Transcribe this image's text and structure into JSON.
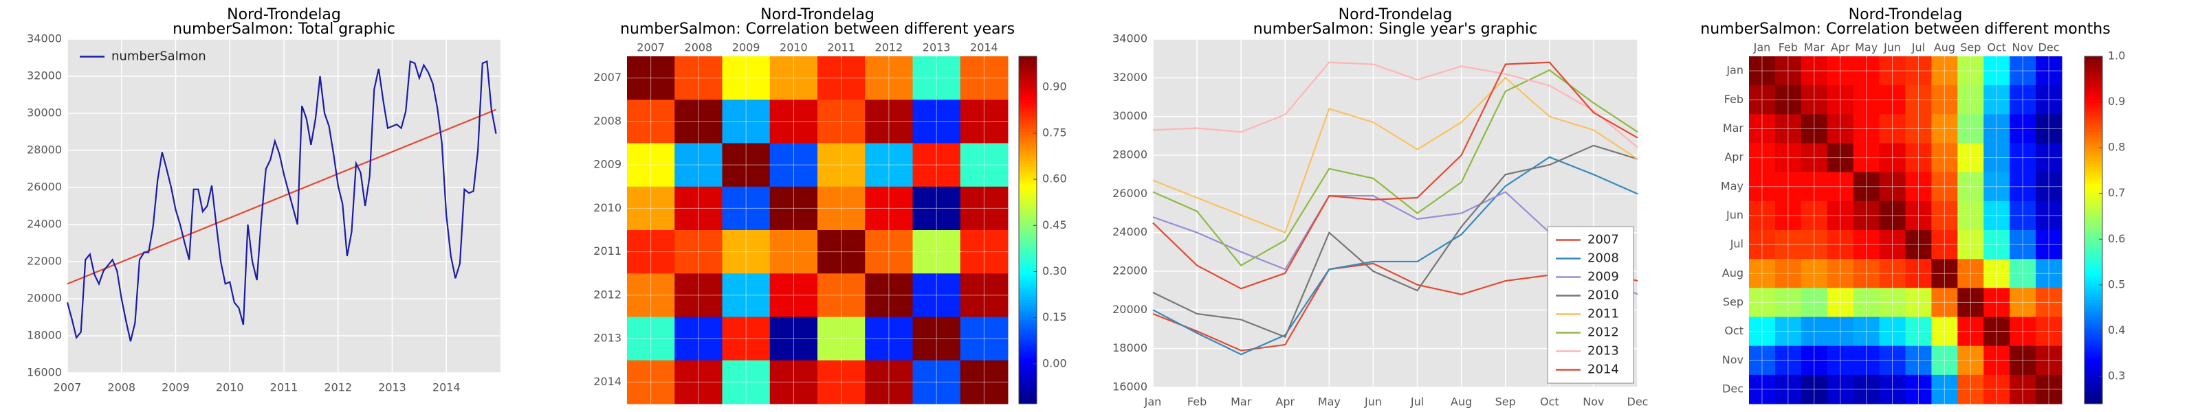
{
  "chart_data": [
    {
      "type": "line",
      "title": "Nord-Trondelag",
      "subtitle": "numberSalmon: Total graphic",
      "x": [
        2007,
        2007.083,
        2007.167,
        2007.25,
        2007.333,
        2007.417,
        2007.5,
        2007.583,
        2007.667,
        2007.75,
        2007.833,
        2007.917,
        2008,
        2008.083,
        2008.167,
        2008.25,
        2008.333,
        2008.417,
        2008.5,
        2008.583,
        2008.667,
        2008.75,
        2008.833,
        2008.917,
        2009,
        2009.083,
        2009.167,
        2009.25,
        2009.333,
        2009.417,
        2009.5,
        2009.583,
        2009.667,
        2009.75,
        2009.833,
        2009.917,
        2010,
        2010.083,
        2010.167,
        2010.25,
        2010.333,
        2010.417,
        2010.5,
        2010.583,
        2010.667,
        2010.75,
        2010.833,
        2010.917,
        2011,
        2011.083,
        2011.167,
        2011.25,
        2011.333,
        2011.417,
        2011.5,
        2011.583,
        2011.667,
        2011.75,
        2011.833,
        2011.917,
        2012,
        2012.083,
        2012.167,
        2012.25,
        2012.333,
        2012.417,
        2012.5,
        2012.583,
        2012.667,
        2012.75,
        2012.833,
        2012.917,
        2013,
        2013.083,
        2013.167,
        2013.25,
        2013.333,
        2013.417,
        2013.5,
        2013.583,
        2013.667,
        2013.75,
        2013.833,
        2013.917,
        2014,
        2014.083,
        2014.167,
        2014.25,
        2014.333,
        2014.417,
        2014.5,
        2014.583,
        2014.667,
        2014.75,
        2014.833,
        2014.917
      ],
      "series": [
        {
          "name": "numberSalmon",
          "color": "#1c1ca8",
          "values": [
            19800,
            18900,
            17900,
            18200,
            22100,
            22400,
            21300,
            20800,
            21500,
            21800,
            22100,
            21500,
            20000,
            18800,
            17700,
            18700,
            22100,
            22500,
            22500,
            23900,
            26400,
            27900,
            27000,
            26000,
            24800,
            24000,
            23000,
            22100,
            25900,
            25900,
            24700,
            25000,
            26100,
            24000,
            22000,
            20800,
            20900,
            19800,
            19500,
            18600,
            24000,
            22000,
            21000,
            24300,
            27000,
            27500,
            28500,
            27800,
            26700,
            25800,
            24900,
            24000,
            30400,
            29700,
            28300,
            29700,
            32000,
            30000,
            29300,
            27800,
            26100,
            25100,
            22300,
            23600,
            27300,
            26800,
            25000,
            26600,
            31300,
            32400,
            30700,
            29200,
            29300,
            29400,
            29200,
            30100,
            32800,
            32700,
            31900,
            32600,
            32200,
            31600,
            30300,
            28400,
            24500,
            22300,
            21100,
            21900,
            25900,
            25700,
            25800,
            28000,
            32700,
            32800,
            30200,
            28900
          ]
        }
      ],
      "trend": {
        "x": [
          2007,
          2014.917
        ],
        "values": [
          20800,
          30200
        ],
        "color": "#e24a33"
      },
      "xlim": [
        2007,
        2015
      ],
      "xticks": [
        2007,
        2008,
        2009,
        2010,
        2011,
        2012,
        2013,
        2014
      ],
      "ylim": [
        16000,
        34000
      ],
      "yticks": [
        16000,
        18000,
        20000,
        22000,
        24000,
        26000,
        28000,
        30000,
        32000,
        34000
      ],
      "grid": true,
      "legend": "upper left"
    },
    {
      "type": "heatmap",
      "title": "Nord-Trondelag",
      "subtitle": "numberSalmon: Correlation between different years",
      "categories": [
        "2007",
        "2008",
        "2009",
        "2010",
        "2011",
        "2012",
        "2013",
        "2014"
      ],
      "values": [
        [
          1.0,
          0.78,
          0.58,
          0.68,
          0.82,
          0.72,
          0.35,
          0.75
        ],
        [
          0.78,
          1.0,
          0.2,
          0.9,
          0.78,
          0.95,
          0.05,
          0.92
        ],
        [
          0.58,
          0.2,
          1.0,
          0.1,
          0.66,
          0.22,
          0.83,
          0.35
        ],
        [
          0.68,
          0.9,
          0.1,
          1.0,
          0.72,
          0.88,
          -0.1,
          0.93
        ],
        [
          0.82,
          0.78,
          0.66,
          0.72,
          1.0,
          0.75,
          0.5,
          0.82
        ],
        [
          0.72,
          0.95,
          0.22,
          0.88,
          0.75,
          1.0,
          0.05,
          0.95
        ],
        [
          0.35,
          0.05,
          0.83,
          -0.1,
          0.5,
          0.05,
          1.0,
          0.1
        ],
        [
          0.75,
          0.92,
          0.35,
          0.93,
          0.82,
          0.95,
          0.1,
          1.0
        ]
      ],
      "colormap": "jet",
      "clim": [
        -0.13,
        1.0
      ],
      "colorbar_ticks": [
        {
          "value": 0,
          "label": "0.00"
        },
        {
          "value": 0.15,
          "label": "0.15"
        },
        {
          "value": 0.3,
          "label": "0.30"
        },
        {
          "value": 0.45,
          "label": "0.45"
        },
        {
          "value": 0.6,
          "label": "0.60"
        },
        {
          "value": 0.75,
          "label": "0.75"
        },
        {
          "value": 0.9,
          "label": "0.90"
        }
      ],
      "grid": true
    },
    {
      "type": "line",
      "title": "Nord-Trondelag",
      "subtitle": "numberSalmon: Single year's graphic",
      "categories": [
        "Jan",
        "Feb",
        "Mar",
        "Apr",
        "May",
        "Jun",
        "Jul",
        "Aug",
        "Sep",
        "Oct",
        "Nov",
        "Dec"
      ],
      "series": [
        {
          "name": "2007",
          "color": "#e24a33",
          "values": [
            19800,
            18900,
            17900,
            18200,
            22100,
            22400,
            21300,
            20800,
            21500,
            21800,
            22100,
            21500
          ]
        },
        {
          "name": "2008",
          "color": "#348abd",
          "values": [
            20000,
            18800,
            17700,
            18700,
            22100,
            22500,
            22500,
            23900,
            26400,
            27900,
            27000,
            26000
          ]
        },
        {
          "name": "2009",
          "color": "#988ed5",
          "values": [
            24800,
            24000,
            23000,
            22100,
            25900,
            25900,
            24700,
            25000,
            26100,
            24000,
            22000,
            20800
          ]
        },
        {
          "name": "2010",
          "color": "#777777",
          "values": [
            20900,
            19800,
            19500,
            18600,
            24000,
            22000,
            21000,
            24300,
            27000,
            27500,
            28500,
            27800
          ]
        },
        {
          "name": "2011",
          "color": "#fbc15e",
          "values": [
            26700,
            25800,
            24900,
            24000,
            30400,
            29700,
            28300,
            29700,
            32000,
            30000,
            29300,
            27800
          ]
        },
        {
          "name": "2012",
          "color": "#8eba42",
          "values": [
            26100,
            25100,
            22300,
            23600,
            27300,
            26800,
            25000,
            26600,
            31300,
            32400,
            30700,
            29200
          ]
        },
        {
          "name": "2013",
          "color": "#ffb5b8",
          "values": [
            29300,
            29400,
            29200,
            30100,
            32800,
            32700,
            31900,
            32600,
            32200,
            31600,
            30300,
            28400
          ]
        },
        {
          "name": "2014",
          "color": "#e24a33",
          "values": [
            24500,
            22300,
            21100,
            21900,
            25900,
            25700,
            25800,
            28000,
            32700,
            32800,
            30200,
            28900
          ]
        }
      ],
      "ylim": [
        16000,
        34000
      ],
      "yticks": [
        16000,
        18000,
        20000,
        22000,
        24000,
        26000,
        28000,
        30000,
        32000,
        34000
      ],
      "grid": true,
      "legend": "lower right"
    },
    {
      "type": "heatmap",
      "title": "Nord-Trondelag",
      "subtitle": "numberSalmon: Correlation between different months",
      "categories": [
        "Jan",
        "Feb",
        "Mar",
        "Apr",
        "May",
        "Jun",
        "Jul",
        "Aug",
        "Sep",
        "Oct",
        "Nov",
        "Dec"
      ],
      "values": [
        [
          1.0,
          0.97,
          0.92,
          0.9,
          0.9,
          0.88,
          0.87,
          0.8,
          0.66,
          0.52,
          0.4,
          0.32
        ],
        [
          0.97,
          1.0,
          0.95,
          0.92,
          0.9,
          0.9,
          0.86,
          0.82,
          0.65,
          0.48,
          0.36,
          0.3
        ],
        [
          0.92,
          0.95,
          1.0,
          0.94,
          0.9,
          0.88,
          0.86,
          0.8,
          0.63,
          0.45,
          0.33,
          0.26
        ],
        [
          0.9,
          0.92,
          0.94,
          1.0,
          0.9,
          0.92,
          0.88,
          0.82,
          0.7,
          0.45,
          0.35,
          0.3
        ],
        [
          0.9,
          0.9,
          0.9,
          0.9,
          1.0,
          0.96,
          0.9,
          0.84,
          0.65,
          0.46,
          0.35,
          0.28
        ],
        [
          0.88,
          0.9,
          0.88,
          0.92,
          0.96,
          1.0,
          0.93,
          0.86,
          0.66,
          0.5,
          0.37,
          0.3
        ],
        [
          0.87,
          0.86,
          0.86,
          0.88,
          0.9,
          0.93,
          1.0,
          0.88,
          0.68,
          0.55,
          0.42,
          0.33
        ],
        [
          0.8,
          0.82,
          0.8,
          0.82,
          0.84,
          0.86,
          0.88,
          1.0,
          0.82,
          0.7,
          0.58,
          0.45
        ],
        [
          0.66,
          0.65,
          0.63,
          0.7,
          0.65,
          0.66,
          0.68,
          0.82,
          1.0,
          0.9,
          0.8,
          0.85
        ],
        [
          0.52,
          0.48,
          0.45,
          0.45,
          0.46,
          0.5,
          0.55,
          0.7,
          0.9,
          1.0,
          0.9,
          0.88
        ],
        [
          0.4,
          0.36,
          0.33,
          0.35,
          0.35,
          0.37,
          0.42,
          0.58,
          0.8,
          0.9,
          1.0,
          0.96
        ],
        [
          0.32,
          0.3,
          0.26,
          0.3,
          0.28,
          0.3,
          0.33,
          0.45,
          0.85,
          0.88,
          0.96,
          1.0
        ]
      ],
      "colormap": "jet",
      "clim": [
        0.24,
        1.0
      ],
      "colorbar_ticks": [
        0.3,
        0.4,
        0.5,
        0.6,
        0.7,
        0.8,
        0.9,
        {
          "value": 1,
          "label": "1.0"
        }
      ],
      "grid": true
    }
  ]
}
